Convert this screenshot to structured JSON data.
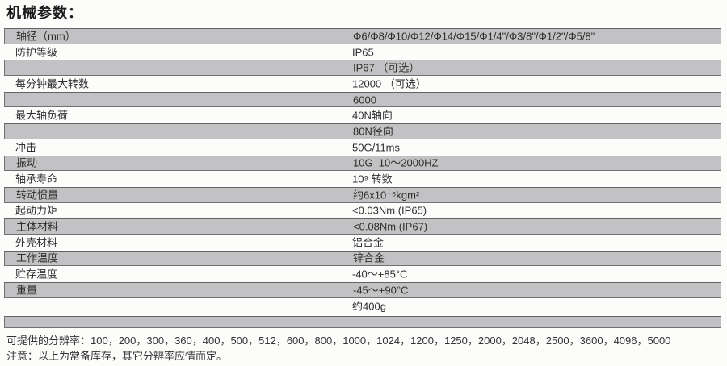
{
  "title": "机械参数：",
  "table": {
    "rows": [
      {
        "label": "轴径（mm）",
        "value": "Φ6/Φ8/Φ10/Φ12/Φ14/Φ15/Φ1/4\"/Φ3/8\"/Φ1/2\"/Φ5/8\"",
        "shaded": true
      },
      {
        "label": "防护等级",
        "value": "IP65",
        "shaded": false
      },
      {
        "label": "",
        "value": "IP67 （可选）",
        "shaded": true
      },
      {
        "label": "每分钟最大转数",
        "value": "12000 （可选）",
        "shaded": false
      },
      {
        "label": "",
        "value": "6000",
        "shaded": true
      },
      {
        "label": "最大轴负荷",
        "value": "40N轴向",
        "shaded": false
      },
      {
        "label": "",
        "value": "80N径向",
        "shaded": true
      },
      {
        "label": "冲击",
        "value": "50G/11ms",
        "shaded": false
      },
      {
        "label": "振动",
        "value": "10G  10～2000HZ",
        "shaded": true
      },
      {
        "label": "轴承寿命",
        "value": "10⁹ 转数",
        "shaded": false
      },
      {
        "label": "转动惯量",
        "value": "约6x10⁻⁶kgm²",
        "shaded": true
      },
      {
        "label": "起动力矩",
        "value": "<0.03Nm (IP65)",
        "shaded": false
      },
      {
        "label": "主体材料",
        "value": "<0.08Nm (IP67)",
        "shaded": true
      },
      {
        "label": "外壳材料",
        "value": "铝合金",
        "shaded": false
      },
      {
        "label": "工作温度",
        "value": "锌合金",
        "shaded": true
      },
      {
        "label": "贮存温度",
        "value": "-40～+85°C",
        "shaded": false
      },
      {
        "label": "重量",
        "value": "-45～+90°C",
        "shaded": true
      },
      {
        "label": "",
        "value": "约400g",
        "shaded": false
      },
      {
        "label": "",
        "value": "",
        "shaded": true
      }
    ]
  },
  "footnotes": {
    "line1": "可提供的分辨率：100，200，300，360，400，500，512，600，800，1000，1024，1200，1250，2000，2048，2500，3600，4096，5000",
    "line2": "注意：以上为常备库存，其它分辨率应情而定。"
  },
  "colors": {
    "page_bg": "#fcfcfb",
    "shaded_row_bg": "#c2c2c4",
    "shaded_row_border": "#717175",
    "text": "#2e2e2e"
  }
}
